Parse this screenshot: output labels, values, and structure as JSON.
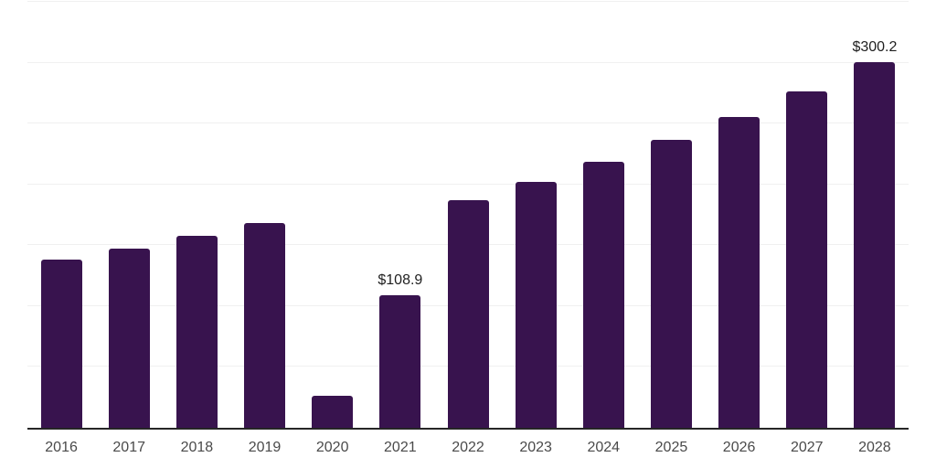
{
  "chart_data": {
    "type": "bar",
    "title": "",
    "xlabel": "",
    "ylabel": "",
    "categories": [
      "2016",
      "2017",
      "2018",
      "2019",
      "2020",
      "2021",
      "2022",
      "2023",
      "2024",
      "2025",
      "2026",
      "2027",
      "2028"
    ],
    "values": [
      138.0,
      147.0,
      158.0,
      168.5,
      26.5,
      108.9,
      187.0,
      202.0,
      218.5,
      236.5,
      255.5,
      276.5,
      300.2
    ],
    "data_labels": [
      {
        "category": "2021",
        "text": "$108.9"
      },
      {
        "category": "2028",
        "text": "$300.2"
      }
    ],
    "value_prefix": "$",
    "ylim": [
      0,
      350
    ],
    "grid_step": 50,
    "grid": true,
    "y_tick_labels_visible": false,
    "legend": false
  },
  "style": {
    "background": "#ffffff",
    "bar_color": "#38134e",
    "grid_color": "#f0f0f0",
    "axis_color": "#262626",
    "tick_label_color": "#4a4a4a",
    "data_label_color": "#1f1f1f"
  }
}
